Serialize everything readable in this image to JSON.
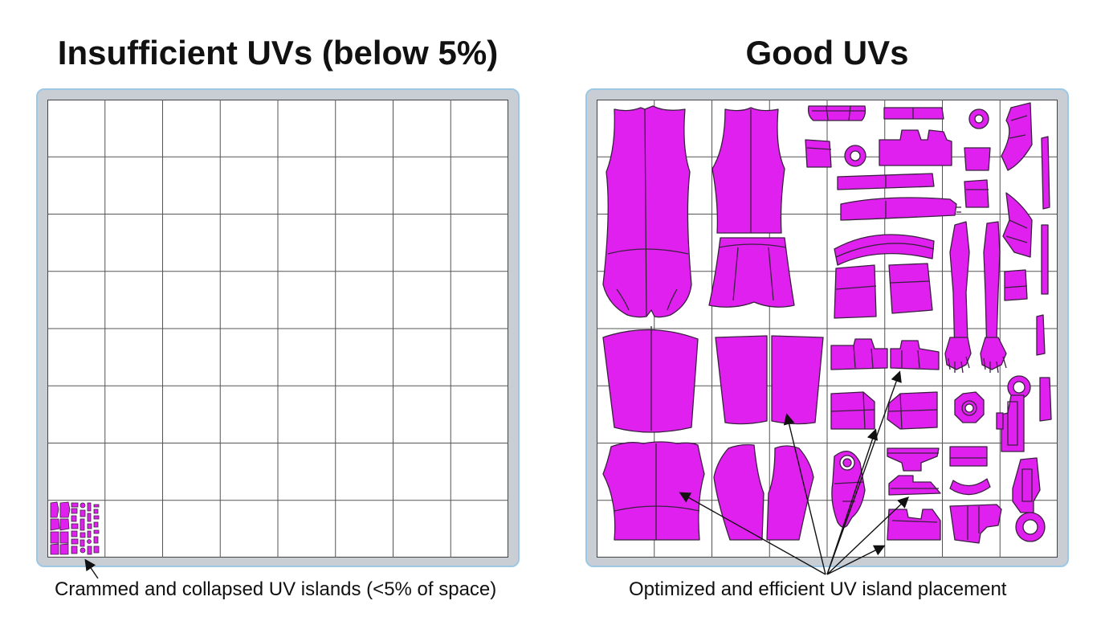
{
  "panels": {
    "left": {
      "title": "Insufficient UVs (below 5%)",
      "caption": "Crammed and collapsed UV islands (<5% of space)"
    },
    "right": {
      "title": "Good UVs",
      "caption": "Optimized and efficient UV island placement"
    }
  },
  "grid": {
    "divisions": 8
  },
  "colors": {
    "island_fill": "#e020ee",
    "island_stroke": "#3a2040",
    "grid_line": "#555555",
    "frame_fill": "#c9ced4",
    "frame_border": "#9cc8e6"
  }
}
